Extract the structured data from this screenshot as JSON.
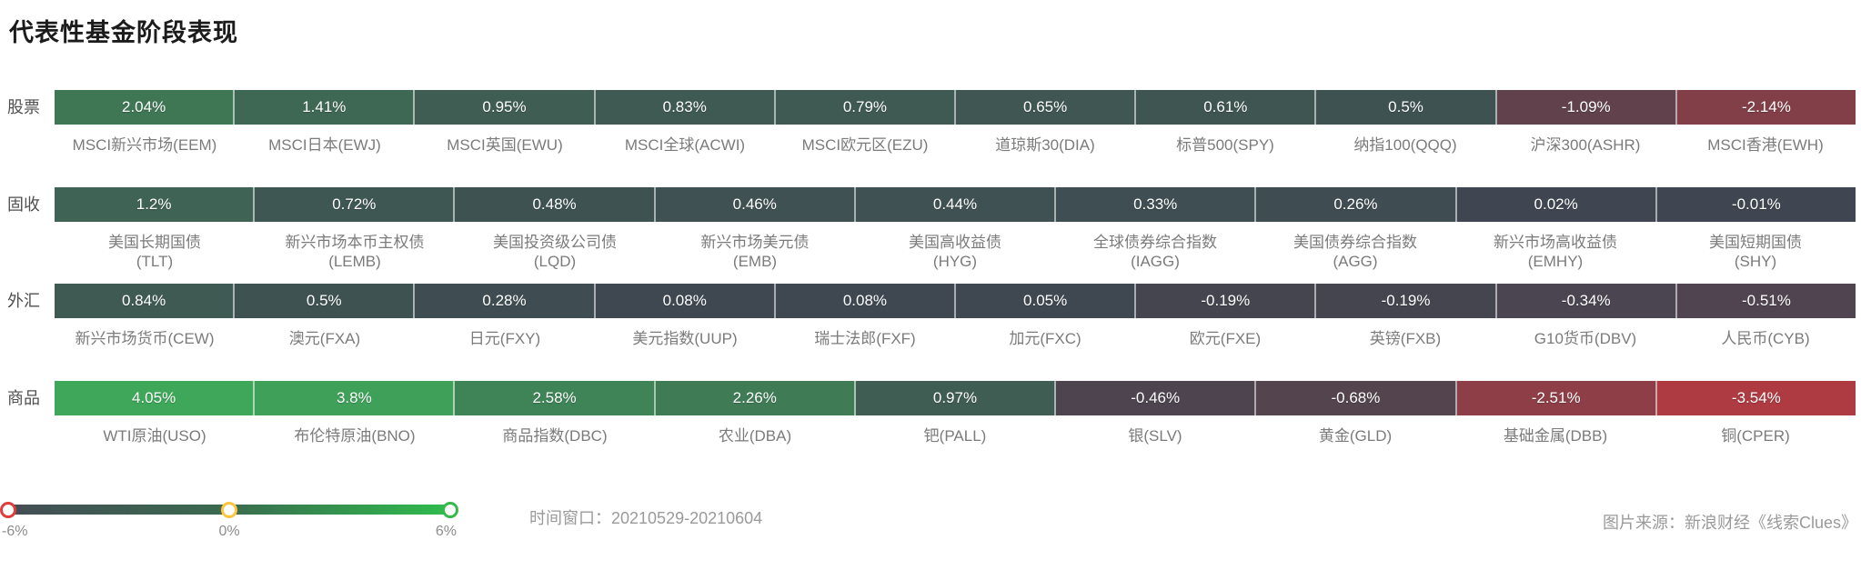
{
  "title": "代表性基金阶段表现",
  "legend": {
    "min_label": "-6%",
    "mid_label": "0%",
    "max_label": "6%",
    "gradient": [
      "#444c55",
      "#3a6b4f",
      "#2fbf4e"
    ],
    "handle_colors": {
      "min": "#e23b3b",
      "mid": "#ffc53d",
      "max": "#35b94a"
    }
  },
  "footer": {
    "time_window": "时间窗口：20210529-20210604",
    "source": "图片来源：新浪财经《线索Clues》"
  },
  "color_scale": {
    "domain": [
      -6,
      0,
      6
    ],
    "colors": [
      "#fb3238",
      "#3f4651",
      "#3fd65e"
    ]
  },
  "chart_data": {
    "type": "heatmap",
    "title": "代表性基金阶段表现",
    "unit": "%",
    "value_range": [
      -6,
      6
    ],
    "rows": [
      {
        "category": "股票",
        "items": [
          {
            "label_lines": [
              "MSCI新兴市场(EEM)"
            ],
            "value": 2.04,
            "value_label": "2.04%"
          },
          {
            "label_lines": [
              "MSCI日本(EWJ)"
            ],
            "value": 1.41,
            "value_label": "1.41%"
          },
          {
            "label_lines": [
              "MSCI英国(EWU)"
            ],
            "value": 0.95,
            "value_label": "0.95%"
          },
          {
            "label_lines": [
              "MSCI全球(ACWI)"
            ],
            "value": 0.83,
            "value_label": "0.83%"
          },
          {
            "label_lines": [
              "MSCI欧元区(EZU)"
            ],
            "value": 0.79,
            "value_label": "0.79%"
          },
          {
            "label_lines": [
              "道琼斯30(DIA)"
            ],
            "value": 0.65,
            "value_label": "0.65%"
          },
          {
            "label_lines": [
              "标普500(SPY)"
            ],
            "value": 0.61,
            "value_label": "0.61%"
          },
          {
            "label_lines": [
              "纳指100(QQQ)"
            ],
            "value": 0.5,
            "value_label": "0.5%"
          },
          {
            "label_lines": [
              "沪深300(ASHR)"
            ],
            "value": -1.09,
            "value_label": "-1.09%"
          },
          {
            "label_lines": [
              "MSCI香港(EWH)"
            ],
            "value": -2.14,
            "value_label": "-2.14%"
          }
        ]
      },
      {
        "category": "固收",
        "items": [
          {
            "label_lines": [
              "美国长期国债",
              "(TLT)"
            ],
            "value": 1.2,
            "value_label": "1.2%"
          },
          {
            "label_lines": [
              "新兴市场本币主权债",
              "(LEMB)"
            ],
            "value": 0.72,
            "value_label": "0.72%"
          },
          {
            "label_lines": [
              "美国投资级公司债",
              "(LQD)"
            ],
            "value": 0.48,
            "value_label": "0.48%"
          },
          {
            "label_lines": [
              "新兴市场美元债",
              "(EMB)"
            ],
            "value": 0.46,
            "value_label": "0.46%"
          },
          {
            "label_lines": [
              "美国高收益债",
              "(HYG)"
            ],
            "value": 0.44,
            "value_label": "0.44%"
          },
          {
            "label_lines": [
              "全球债券综合指数",
              "(IAGG)"
            ],
            "value": 0.33,
            "value_label": "0.33%"
          },
          {
            "label_lines": [
              "美国债券综合指数",
              "(AGG)"
            ],
            "value": 0.26,
            "value_label": "0.26%"
          },
          {
            "label_lines": [
              "新兴市场高收益债",
              "(EMHY)"
            ],
            "value": 0.02,
            "value_label": "0.02%"
          },
          {
            "label_lines": [
              "美国短期国债",
              "(SHY)"
            ],
            "value": -0.01,
            "value_label": "-0.01%"
          }
        ]
      },
      {
        "category": "外汇",
        "items": [
          {
            "label_lines": [
              "新兴市场货币(CEW)"
            ],
            "value": 0.84,
            "value_label": "0.84%"
          },
          {
            "label_lines": [
              "澳元(FXA)"
            ],
            "value": 0.5,
            "value_label": "0.5%"
          },
          {
            "label_lines": [
              "日元(FXY)"
            ],
            "value": 0.28,
            "value_label": "0.28%"
          },
          {
            "label_lines": [
              "美元指数(UUP)"
            ],
            "value": 0.08,
            "value_label": "0.08%"
          },
          {
            "label_lines": [
              "瑞士法郎(FXF)"
            ],
            "value": 0.08,
            "value_label": "0.08%"
          },
          {
            "label_lines": [
              "加元(FXC)"
            ],
            "value": 0.05,
            "value_label": "0.05%"
          },
          {
            "label_lines": [
              "欧元(FXE)"
            ],
            "value": -0.19,
            "value_label": "-0.19%"
          },
          {
            "label_lines": [
              "英镑(FXB)"
            ],
            "value": -0.19,
            "value_label": "-0.19%"
          },
          {
            "label_lines": [
              "G10货币(DBV)"
            ],
            "value": -0.34,
            "value_label": "-0.34%"
          },
          {
            "label_lines": [
              "人民币(CYB)"
            ],
            "value": -0.51,
            "value_label": "-0.51%"
          }
        ]
      },
      {
        "category": "商品",
        "items": [
          {
            "label_lines": [
              "WTI原油(USO)"
            ],
            "value": 4.05,
            "value_label": "4.05%"
          },
          {
            "label_lines": [
              "布伦特原油(BNO)"
            ],
            "value": 3.8,
            "value_label": "3.8%"
          },
          {
            "label_lines": [
              "商品指数(DBC)"
            ],
            "value": 2.58,
            "value_label": "2.58%"
          },
          {
            "label_lines": [
              "农业(DBA)"
            ],
            "value": 2.26,
            "value_label": "2.26%"
          },
          {
            "label_lines": [
              "钯(PALL)"
            ],
            "value": 0.97,
            "value_label": "0.97%"
          },
          {
            "label_lines": [
              "银(SLV)"
            ],
            "value": -0.46,
            "value_label": "-0.46%"
          },
          {
            "label_lines": [
              "黄金(GLD)"
            ],
            "value": -0.68,
            "value_label": "-0.68%"
          },
          {
            "label_lines": [
              "基础金属(DBB)"
            ],
            "value": -2.51,
            "value_label": "-2.51%"
          },
          {
            "label_lines": [
              "铜(CPER)"
            ],
            "value": -3.54,
            "value_label": "-3.54%"
          }
        ]
      }
    ]
  }
}
